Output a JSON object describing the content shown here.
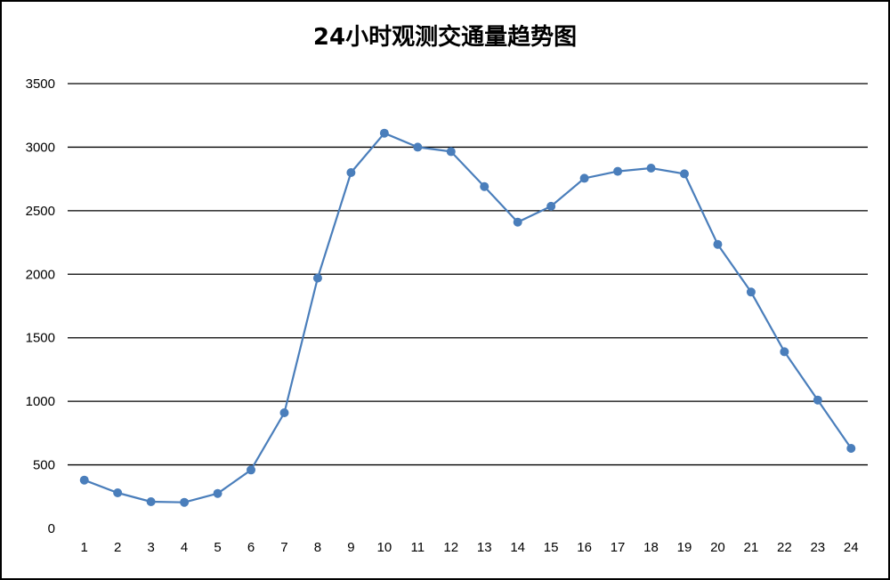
{
  "chart_data": {
    "type": "line",
    "title": "24小时观测交通量趋势图",
    "xlabel": "",
    "ylabel": "",
    "categories": [
      "1",
      "2",
      "3",
      "4",
      "5",
      "6",
      "7",
      "8",
      "9",
      "10",
      "11",
      "12",
      "13",
      "14",
      "15",
      "16",
      "17",
      "18",
      "19",
      "20",
      "21",
      "22",
      "23",
      "24"
    ],
    "series": [
      {
        "values": [
          380,
          280,
          210,
          205,
          275,
          460,
          910,
          1970,
          2800,
          3110,
          3000,
          2965,
          2690,
          2410,
          2535,
          2755,
          2810,
          2835,
          2790,
          2235,
          1860,
          1390,
          1010,
          630
        ],
        "color": "#4a7ebb"
      }
    ],
    "ylim": [
      0,
      3500
    ],
    "yticks": [
      0,
      500,
      1000,
      1500,
      2000,
      2500,
      3000,
      3500
    ],
    "grid": true,
    "legend": "none"
  }
}
